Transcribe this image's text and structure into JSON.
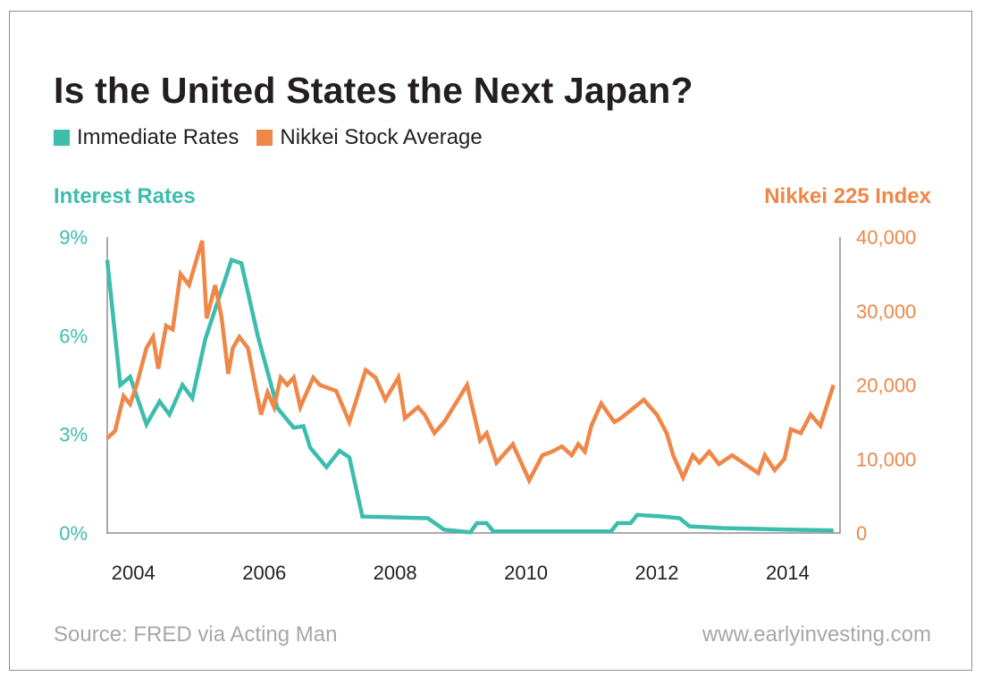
{
  "colors": {
    "rates": "#3dbdad",
    "nikkei": "#ee8748",
    "text": "#231f20",
    "muted": "#a7a7a7",
    "axis": "#8e8e8e"
  },
  "chart_data": {
    "type": "line",
    "title": "Is the United States the Next Japan?",
    "legend": [
      {
        "label": "Immediate Rates",
        "color": "#3dbdad"
      },
      {
        "label": "Nikkei Stock Average",
        "color": "#ee8748"
      }
    ],
    "legend_placement": "top-left",
    "grid": false,
    "x_axis": {
      "range": [
        2003.6,
        2014.8
      ],
      "ticks": [
        2004,
        2006,
        2008,
        2010,
        2012,
        2014
      ],
      "tick_labels": [
        "2004",
        "2006",
        "2008",
        "2010",
        "2012",
        "2014"
      ]
    },
    "y_left": {
      "label": "Interest Rates",
      "range": [
        0,
        9
      ],
      "ticks": [
        0,
        3,
        6,
        9
      ],
      "tick_labels": [
        "0%",
        "3%",
        "6%",
        "9%"
      ]
    },
    "y_right": {
      "label": "Nikkei 225 Index",
      "range": [
        0,
        40000
      ],
      "ticks": [
        0,
        10000,
        20000,
        30000,
        40000
      ],
      "tick_labels": [
        "0",
        "10,000",
        "20,000",
        "30,000",
        "40,000"
      ]
    },
    "series": [
      {
        "name": "Immediate Rates",
        "axis": "left",
        "x": [
          2003.6,
          2003.8,
          2003.95,
          2004.2,
          2004.4,
          2004.55,
          2004.75,
          2004.9,
          2005.1,
          2005.5,
          2005.65,
          2005.9,
          2006.2,
          2006.45,
          2006.6,
          2006.7,
          2006.95,
          2007.15,
          2007.3,
          2007.5,
          2008.5,
          2008.75,
          2009.15,
          2009.25,
          2009.4,
          2009.5,
          2010.0,
          2010.5,
          2011.0,
          2011.3,
          2011.4,
          2011.6,
          2011.7,
          2012.1,
          2012.35,
          2012.5,
          2013.0,
          2014.0,
          2014.7
        ],
        "values": [
          8.3,
          4.5,
          4.75,
          3.3,
          4.0,
          3.6,
          4.5,
          4.1,
          5.9,
          8.3,
          8.2,
          6.0,
          3.8,
          3.2,
          3.25,
          2.6,
          2.0,
          2.5,
          2.3,
          0.5,
          0.45,
          0.1,
          0.02,
          0.3,
          0.3,
          0.05,
          0.05,
          0.05,
          0.05,
          0.05,
          0.3,
          0.3,
          0.55,
          0.5,
          0.45,
          0.2,
          0.15,
          0.1,
          0.08
        ]
      },
      {
        "name": "Nikkei Stock Average",
        "axis": "right",
        "x": [
          2003.6,
          2003.72,
          2003.85,
          2003.95,
          2004.05,
          2004.2,
          2004.3,
          2004.38,
          2004.5,
          2004.6,
          2004.72,
          2004.85,
          2004.95,
          2005.05,
          2005.12,
          2005.25,
          2005.35,
          2005.45,
          2005.52,
          2005.62,
          2005.75,
          2005.85,
          2005.95,
          2006.05,
          2006.15,
          2006.25,
          2006.35,
          2006.45,
          2006.55,
          2006.6,
          2006.75,
          2006.85,
          2007.1,
          2007.3,
          2007.55,
          2007.7,
          2007.85,
          2008.05,
          2008.15,
          2008.35,
          2008.45,
          2008.6,
          2008.75,
          2009.1,
          2009.3,
          2009.4,
          2009.55,
          2009.8,
          2010.05,
          2010.25,
          2010.4,
          2010.55,
          2010.7,
          2010.8,
          2010.9,
          2011.0,
          2011.15,
          2011.35,
          2011.45,
          2011.8,
          2012.0,
          2012.15,
          2012.25,
          2012.4,
          2012.55,
          2012.65,
          2012.8,
          2012.95,
          2013.15,
          2013.45,
          2013.55,
          2013.65,
          2013.8,
          2013.95,
          2014.05,
          2014.2,
          2014.35,
          2014.5,
          2014.7
        ],
        "values": [
          12800,
          13800,
          18500,
          17400,
          20000,
          25000,
          26500,
          22200,
          28000,
          27500,
          35000,
          33500,
          36500,
          39500,
          29000,
          33500,
          29000,
          21500,
          25000,
          26500,
          25000,
          20500,
          16000,
          19000,
          17000,
          21000,
          20000,
          21000,
          17000,
          18000,
          21000,
          20000,
          19200,
          15000,
          22000,
          21000,
          18000,
          21000,
          15500,
          17000,
          16000,
          13500,
          15000,
          20000,
          12500,
          13500,
          9500,
          12000,
          7100,
          10500,
          11000,
          11700,
          10500,
          12000,
          11000,
          14500,
          17500,
          15000,
          15500,
          18000,
          16000,
          13500,
          10500,
          7500,
          10500,
          9500,
          11000,
          9300,
          10500,
          8700,
          8100,
          10500,
          8500,
          10000,
          14000,
          13500,
          16000,
          14500,
          20000
        ]
      }
    ]
  },
  "title": "Is the United States the Next Japan?",
  "legend_rates": "Immediate Rates",
  "legend_nikkei": "Nikkei Stock Average",
  "left_axis_title": "Interest Rates",
  "right_axis_title": "Nikkei 225 Index",
  "source": "Source: FRED via Acting Man",
  "website": "www.earlyinvesting.com"
}
